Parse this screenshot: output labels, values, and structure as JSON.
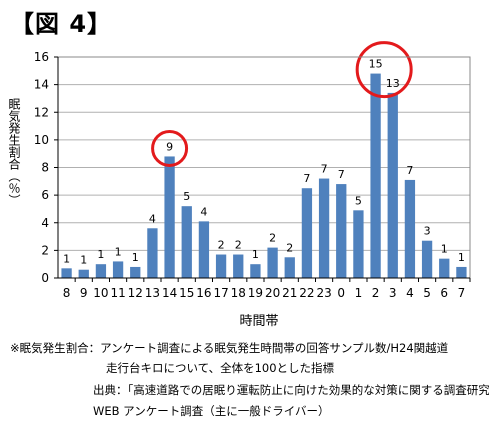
{
  "figure_label": "【図 4】",
  "chart_data": {
    "type": "bar",
    "categories": [
      "8",
      "9",
      "10",
      "11",
      "12",
      "13",
      "14",
      "15",
      "16",
      "17",
      "18",
      "19",
      "20",
      "21",
      "22",
      "23",
      "0",
      "1",
      "2",
      "3",
      "4",
      "5",
      "6",
      "7"
    ],
    "values": [
      0.7,
      0.6,
      1.0,
      1.2,
      0.8,
      3.6,
      8.8,
      5.2,
      4.1,
      1.7,
      1.7,
      1.0,
      2.2,
      1.5,
      6.5,
      7.2,
      6.8,
      4.9,
      14.8,
      13.4,
      7.1,
      2.7,
      1.4,
      0.8
    ],
    "data_labels": [
      "1",
      "1",
      "1",
      "1",
      "1",
      "4",
      "9",
      "5",
      "4",
      "2",
      "2",
      "1",
      "2",
      "2",
      "7",
      "7",
      "7",
      "5",
      "15",
      "13",
      "7",
      "3",
      "1",
      "1"
    ],
    "ylim": [
      0,
      16
    ],
    "yticks": [
      0,
      2,
      4,
      6,
      8,
      10,
      12,
      14,
      16
    ],
    "xlabel": "時間帯",
    "ylabel": "眠気発生割合（％）",
    "grid": true,
    "bar_color": "#4f81bd",
    "highlight_color": "#e31a1c",
    "highlighted_categories": [
      "14",
      "2"
    ]
  },
  "notes": {
    "line1": "※眠気発生割合：アンケート調査による眠気発生時間帯の回答サンプル数/H24関越道",
    "line2": "走行台キロについて、全体を100とした指標"
  },
  "source": {
    "line1": "出典：「高速道路での居眠り運転防止に向けた効果的な対策に関する調査研究」",
    "line2": "WEB アンケート調査（主に一般ドライバー）"
  }
}
